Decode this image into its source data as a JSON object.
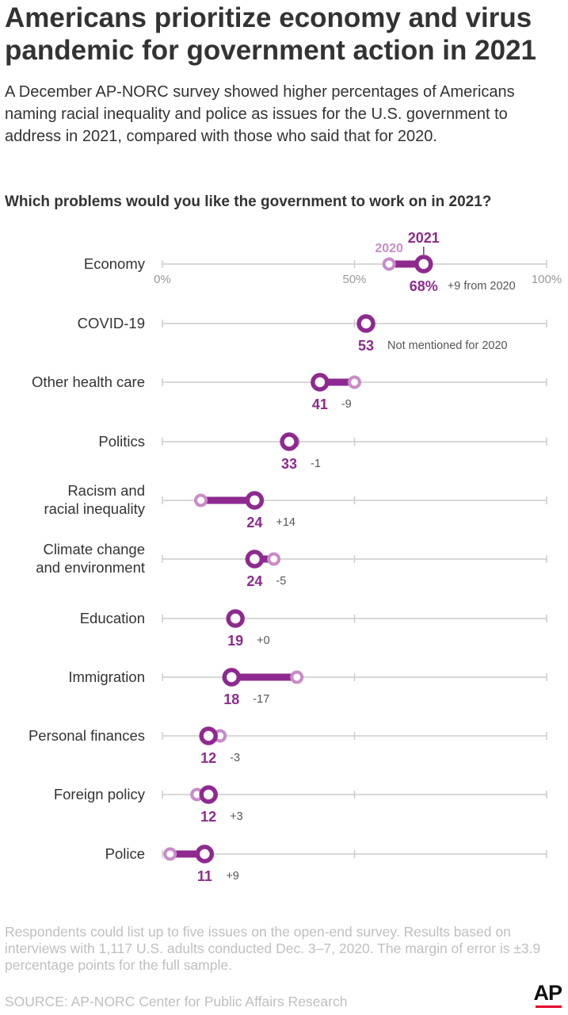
{
  "header": {
    "title": "Americans prioritize economy and virus pandemic for government action in 2021",
    "subtitle": "A December AP-NORC survey showed higher percentages of Americans naming racial inequality and police as issues for the U.S. government to address in 2021, compared with those who said that for 2020.",
    "question": "Which problems would you like the government to work on in 2021?"
  },
  "footer": {
    "note": "Respondents could list up to five issues on the open-end survey. Results based on interviews with 1,117 U.S. adults conducted Dec. 3–7, 2020. The margin of error is ±3.9 percentage points for the full sample.",
    "source": "SOURCE: AP-NORC Center for Public Affairs Research",
    "logo": "AP"
  },
  "colors": {
    "color_2021": "#8e2a8f",
    "color_2020": "#c98cc8",
    "axis": "#cccccc",
    "accent": "#e4002b"
  },
  "chart_data": {
    "type": "dumbbell",
    "xlim": [
      0,
      100
    ],
    "x_ticks": [
      "0%",
      "50%",
      "100%"
    ],
    "legend": [
      "2020",
      "2021"
    ],
    "rows": [
      {
        "label": [
          "Economy"
        ],
        "v2021": 68,
        "v2020": 59,
        "value_label": "68%",
        "change": "+9 from 2020"
      },
      {
        "label": [
          "COVID-19"
        ],
        "v2021": 53,
        "v2020": null,
        "value_label": "53",
        "change": "Not mentioned for 2020"
      },
      {
        "label": [
          "Other health care"
        ],
        "v2021": 41,
        "v2020": 50,
        "value_label": "41",
        "change": "-9"
      },
      {
        "label": [
          "Politics"
        ],
        "v2021": 33,
        "v2020": 34,
        "value_label": "33",
        "change": "-1"
      },
      {
        "label": [
          "Racism and",
          "racial inequality"
        ],
        "v2021": 24,
        "v2020": 10,
        "value_label": "24",
        "change": "+14"
      },
      {
        "label": [
          "Climate change",
          "and environment"
        ],
        "v2021": 24,
        "v2020": 29,
        "value_label": "24",
        "change": "-5"
      },
      {
        "label": [
          "Education"
        ],
        "v2021": 19,
        "v2020": 19,
        "value_label": "19",
        "change": "+0"
      },
      {
        "label": [
          "Immigration"
        ],
        "v2021": 18,
        "v2020": 35,
        "value_label": "18",
        "change": "-17"
      },
      {
        "label": [
          "Personal finances"
        ],
        "v2021": 12,
        "v2020": 15,
        "value_label": "12",
        "change": "-3"
      },
      {
        "label": [
          "Foreign policy"
        ],
        "v2021": 12,
        "v2020": 9,
        "value_label": "12",
        "change": "+3"
      },
      {
        "label": [
          "Police"
        ],
        "v2021": 11,
        "v2020": 2,
        "value_label": "11",
        "change": "+9"
      }
    ]
  }
}
